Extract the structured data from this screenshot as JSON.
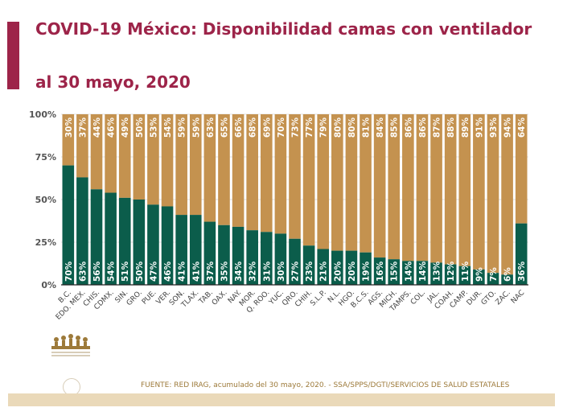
{
  "title_line1": "COVID-19 México: Disponibilidad camas con ventilador",
  "title_line2": "al 30 mayo, 2020",
  "footer": "FUENTE: RED IRAG, acumulado del 30 mayo, 2020. -  SSA/SPPS/DGTI/SERVICIOS DE SALUD ESTATALES",
  "colors": {
    "title": "#9d2449",
    "occupied": "#0b5d4b",
    "available": "#c4924f"
  },
  "chart_data": {
    "type": "bar",
    "stacked": true,
    "ylim": [
      0,
      100
    ],
    "yticks": [
      "0%",
      "25%",
      "50%",
      "75%",
      "100%"
    ],
    "grid": true,
    "categories": [
      "B.C.",
      "EDO. MEX.",
      "CHIS.",
      "CDMX.",
      "SIN.",
      "GRO.",
      "PUE.",
      "VER.",
      "SON.",
      "TLAX.",
      "TAB.",
      "OAX.",
      "NAY.",
      "MOR.",
      "Q. ROO.",
      "YUC.",
      "QRO.",
      "CHIH.",
      "S.L.P.",
      "N.L.",
      "HGO.",
      "B.C.S.",
      "AGS.",
      "MICH.",
      "TAMPS.",
      "COL.",
      "JAL.",
      "COAH.",
      "CAMP.",
      "DUR.",
      "GTO.",
      "ZAC.",
      "NAC"
    ],
    "series": [
      {
        "values": [
          70,
          63,
          56,
          54,
          51,
          50,
          47,
          46,
          41,
          41,
          37,
          35,
          34,
          32,
          31,
          30,
          27,
          23,
          21,
          20,
          20,
          19,
          16,
          15,
          14,
          14,
          13,
          12,
          11,
          9,
          7,
          6,
          36
        ],
        "color": "#0b5d4b"
      },
      {
        "values": [
          30,
          37,
          44,
          46,
          49,
          50,
          53,
          54,
          59,
          59,
          63,
          65,
          66,
          68,
          69,
          70,
          73,
          77,
          79,
          80,
          80,
          81,
          84,
          85,
          86,
          86,
          87,
          88,
          89,
          91,
          93,
          94,
          64
        ],
        "color": "#c4924f"
      }
    ]
  }
}
